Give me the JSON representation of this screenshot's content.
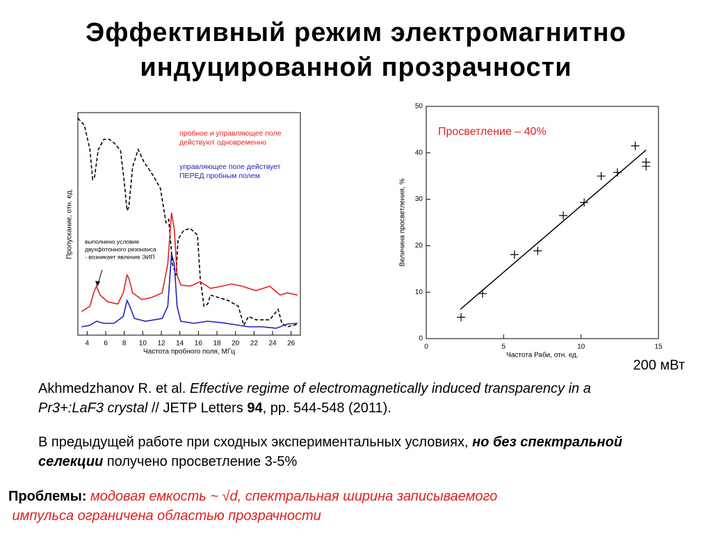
{
  "header": {
    "title": [
      "Эффективный режим электромагнитно",
      "индуцированной прозрачности"
    ]
  },
  "chart_data": [
    {
      "type": "line",
      "ylabel": "Пропускание, отн. ед.",
      "xlabel": "Частота пробного поля, МГц",
      "xlim": [
        3,
        27
      ],
      "ylim": [
        0,
        1
      ],
      "xticks": [
        4,
        6,
        8,
        10,
        12,
        14,
        16,
        18,
        20,
        22,
        24,
        26
      ],
      "annotations": [
        {
          "lines": [
            "пробное и управляющее поле",
            "действуют одновременно"
          ],
          "color": "#e02020"
        },
        {
          "lines": [
            "управляющее поле действует",
            "ПЕРЕД пробным полем"
          ],
          "color": "#2020c0"
        },
        {
          "lines": [
            "выполнено условие",
            "двухфотонного резонанса",
            "- возникает явление ЭИП"
          ],
          "color": "#000000"
        }
      ],
      "series": [
        {
          "color": "#000000",
          "dash": true,
          "x": [
            3.0,
            3.7,
            4.3,
            4.6,
            4.8,
            5.2,
            5.8,
            6.4,
            7.0,
            7.6,
            8.0,
            8.3,
            8.5,
            8.9,
            9.5,
            10.1,
            11.0,
            11.9,
            12.5,
            12.8,
            13.2,
            13.6,
            13.8,
            14.4,
            15.1,
            15.9,
            16.2,
            16.6,
            17.0,
            17.3,
            18.1,
            19.2,
            20.3,
            20.9,
            21.4,
            22.2,
            23.7,
            24.3,
            24.6,
            25.0,
            25.6,
            26.8
          ],
          "values": [
            0.975,
            0.944,
            0.834,
            0.7,
            0.71,
            0.834,
            0.88,
            0.88,
            0.86,
            0.83,
            0.69,
            0.56,
            0.575,
            0.756,
            0.834,
            0.78,
            0.725,
            0.66,
            0.506,
            0.52,
            0.32,
            0.27,
            0.43,
            0.47,
            0.48,
            0.45,
            0.256,
            0.13,
            0.14,
            0.18,
            0.17,
            0.156,
            0.13,
            0.044,
            0.084,
            0.069,
            0.069,
            0.1,
            0.116,
            0.053,
            0.0375,
            0.05
          ]
        },
        {
          "color": "#e02020",
          "dash": false,
          "x": [
            3.4,
            4.3,
            4.7,
            5.0,
            5.4,
            6.2,
            7.3,
            7.9,
            8.3,
            8.5,
            8.9,
            9.9,
            11.0,
            12.1,
            12.7,
            13.1,
            13.4,
            13.7,
            14.1,
            15.1,
            16.2,
            17.3,
            18.5,
            19.6,
            20.7,
            22.2,
            23.7,
            24.8,
            25.6,
            26.7
          ],
          "values": [
            0.106,
            0.13,
            0.19,
            0.22,
            0.18,
            0.15,
            0.14,
            0.19,
            0.27,
            0.256,
            0.19,
            0.16,
            0.17,
            0.19,
            0.32,
            0.55,
            0.475,
            0.27,
            0.225,
            0.22,
            0.24,
            0.21,
            0.22,
            0.23,
            0.22,
            0.2,
            0.22,
            0.18,
            0.19,
            0.18
          ]
        },
        {
          "color": "#2020c0",
          "dash": false,
          "x": [
            3.4,
            4.3,
            5.0,
            5.8,
            6.9,
            7.9,
            8.3,
            8.6,
            9.1,
            10.3,
            12.1,
            12.7,
            13.1,
            13.4,
            13.7,
            14.1,
            15.5,
            17.0,
            18.5,
            20.0,
            21.4,
            22.9,
            24.4,
            25.6,
            26.7
          ],
          "values": [
            0.0375,
            0.044,
            0.0625,
            0.053,
            0.053,
            0.084,
            0.156,
            0.13,
            0.075,
            0.0625,
            0.075,
            0.13,
            0.366,
            0.32,
            0.13,
            0.0625,
            0.053,
            0.0625,
            0.056,
            0.047,
            0.0375,
            0.0375,
            0.031,
            0.05,
            0.053
          ]
        }
      ]
    },
    {
      "type": "scatter",
      "ylabel": "Величина просветления, %",
      "xlabel": "Частота Раби, отн. ед.",
      "xlim": [
        0,
        15
      ],
      "ylim": [
        0,
        50
      ],
      "xticks": [
        0,
        5,
        10,
        15
      ],
      "yticks": [
        0,
        10,
        20,
        30,
        40,
        50
      ],
      "annotation": "Просветление – 40%",
      "annotation_color": "#e02020",
      "note": "200 мВт",
      "series": [
        {
          "color": "#000000",
          "x": [
            2.25,
            3.64,
            5.7,
            7.2,
            8.85,
            10.2,
            11.3,
            12.35,
            13.5,
            14.2,
            14.2
          ],
          "values": [
            4.6,
            9.7,
            18.1,
            18.9,
            26.5,
            29.3,
            35.0,
            35.8,
            41.5,
            38.0,
            37.1
          ]
        }
      ],
      "fit": {
        "x": [
          2.2,
          14.2
        ],
        "values": [
          6.3,
          40.6
        ]
      }
    }
  ],
  "reference": [
    {
      "text": "Akhmedzhanov R. et al. ",
      "style": "normal"
    },
    {
      "text": "Effective regime of electromagnetically induced transparency in a Pr3+:LaF3 crystal",
      "style": "italic"
    },
    {
      "text": " // JETP Letters ",
      "style": "normal"
    },
    {
      "text": "94",
      "style": "bold"
    },
    {
      "text": ", pp. 544-548 (2011).",
      "style": "normal"
    }
  ],
  "previous": [
    {
      "text": "В предыдущей работе при сходных экспериментальных условиях, ",
      "style": "normal"
    },
    {
      "text": "но без спектральной селекции",
      "style": "bolditalic"
    },
    {
      "text": " получено просветление 3-5%",
      "style": "normal"
    }
  ],
  "problems": [
    {
      "text": "Проблемы:",
      "style": "bold"
    },
    {
      "text": " модовая емкость ~ √d, спектральная ширина записываемого",
      "style": "italic-red"
    },
    {
      "text": " импульса ограничена областью прозрачности",
      "style": "italic-red-newline"
    }
  ]
}
